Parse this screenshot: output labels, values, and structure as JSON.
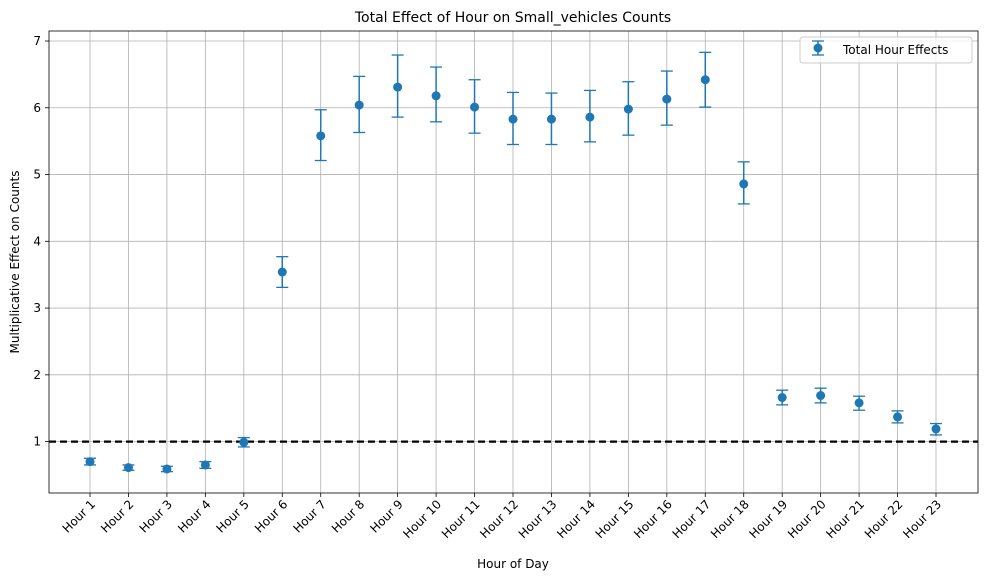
{
  "chart_data": {
    "type": "scatter",
    "title": "Total Effect of Hour on Small_vehicles Counts",
    "xlabel": "Hour of Day",
    "ylabel": "Multiplicative Effect on Counts",
    "categories": [
      "Hour 1",
      "Hour 2",
      "Hour 3",
      "Hour 4",
      "Hour 5",
      "Hour 6",
      "Hour 7",
      "Hour 8",
      "Hour 9",
      "Hour 10",
      "Hour 11",
      "Hour 12",
      "Hour 13",
      "Hour 14",
      "Hour 15",
      "Hour 16",
      "Hour 17",
      "Hour 18",
      "Hour 19",
      "Hour 20",
      "Hour 21",
      "Hour 22",
      "Hour 23"
    ],
    "series": [
      {
        "name": "Total Hour Effects",
        "values": [
          0.7,
          0.61,
          0.59,
          0.65,
          0.99,
          3.54,
          5.58,
          6.04,
          6.31,
          6.18,
          6.01,
          5.83,
          5.83,
          5.86,
          5.98,
          6.13,
          6.42,
          4.86,
          1.66,
          1.69,
          1.58,
          1.37,
          1.19
        ],
        "lower": [
          0.65,
          0.57,
          0.55,
          0.6,
          0.92,
          3.31,
          5.21,
          5.63,
          5.86,
          5.79,
          5.62,
          5.45,
          5.45,
          5.49,
          5.59,
          5.74,
          6.01,
          4.56,
          1.55,
          1.58,
          1.47,
          1.28,
          1.1
        ],
        "upper": [
          0.75,
          0.65,
          0.63,
          0.7,
          1.06,
          3.77,
          5.97,
          6.47,
          6.79,
          6.61,
          6.42,
          6.23,
          6.22,
          6.26,
          6.39,
          6.55,
          6.83,
          5.19,
          1.77,
          1.8,
          1.68,
          1.46,
          1.27
        ],
        "color": "#1f77b4"
      }
    ],
    "reference_line": {
      "y": 1,
      "style": "dashed",
      "color": "#000000"
    },
    "ylim": [
      0.23,
      7.15
    ],
    "yticks": [
      1,
      2,
      3,
      4,
      5,
      6,
      7
    ],
    "grid": true,
    "legend_position": "top-right"
  }
}
